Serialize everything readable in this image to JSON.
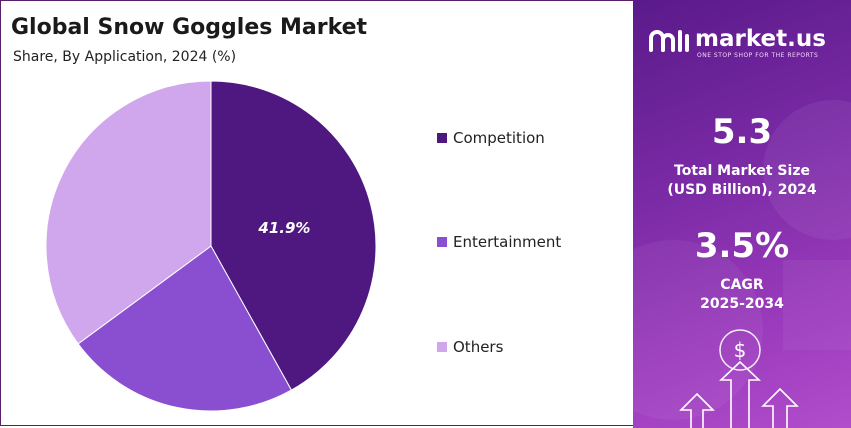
{
  "header": {
    "title": "Global Snow Goggles Market",
    "subtitle": "Share, By Application, 2024 (%)"
  },
  "chart_data": {
    "type": "pie",
    "series": [
      {
        "name": "Competition",
        "value": 41.9,
        "label": "41.9%",
        "color": "#4e1880"
      },
      {
        "name": "Entertainment",
        "value": 23.0,
        "label": "",
        "color": "#8a4fd0"
      },
      {
        "name": "Others",
        "value": 35.1,
        "label": "",
        "color": "#d0a6ec"
      }
    ],
    "legend_position": "right",
    "start_angle_deg": 0,
    "direction": "clockwise"
  },
  "brand": {
    "name": "market.us",
    "tagline": "ONE STOP SHOP FOR THE REPORTS"
  },
  "stats": {
    "market_size_value": "5.3",
    "market_size_label_1": "Total Market Size",
    "market_size_label_2": "(USD Billion), 2024",
    "cagr_value": "3.5%",
    "cagr_label_1": "CAGR",
    "cagr_label_2": "2025-2034"
  },
  "icons": {
    "dollar_symbol": "$"
  }
}
